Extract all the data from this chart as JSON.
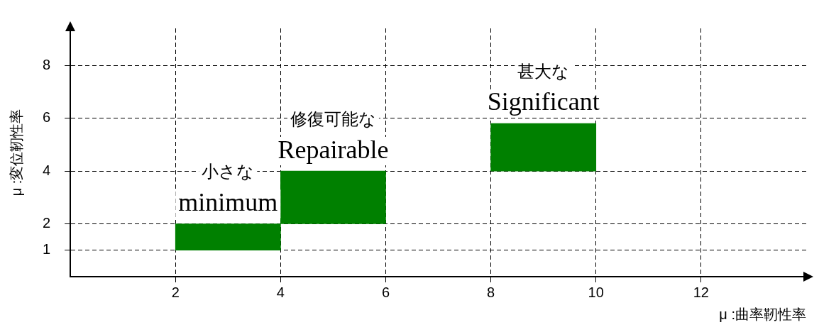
{
  "chart_data": {
    "type": "bar",
    "x": [
      3,
      5,
      9
    ],
    "base": [
      1,
      2,
      4
    ],
    "values": [
      1,
      2,
      1.8
    ],
    "color": "#008000",
    "xlim": [
      0,
      14
    ],
    "xticks": [
      2,
      4,
      6,
      8,
      10,
      12
    ],
    "ylim": [
      0,
      9.4
    ],
    "yticks": [
      1,
      2,
      4,
      6,
      8
    ],
    "xlabel": "μ :曲率靭性率",
    "ylabel": "μ :変位靭性率",
    "grid": true,
    "line_style": "dashed",
    "legend": false,
    "annotations": [
      "小さな",
      "minimum",
      "修復可能な",
      "Repairable",
      "甚大な",
      "Significant"
    ]
  }
}
